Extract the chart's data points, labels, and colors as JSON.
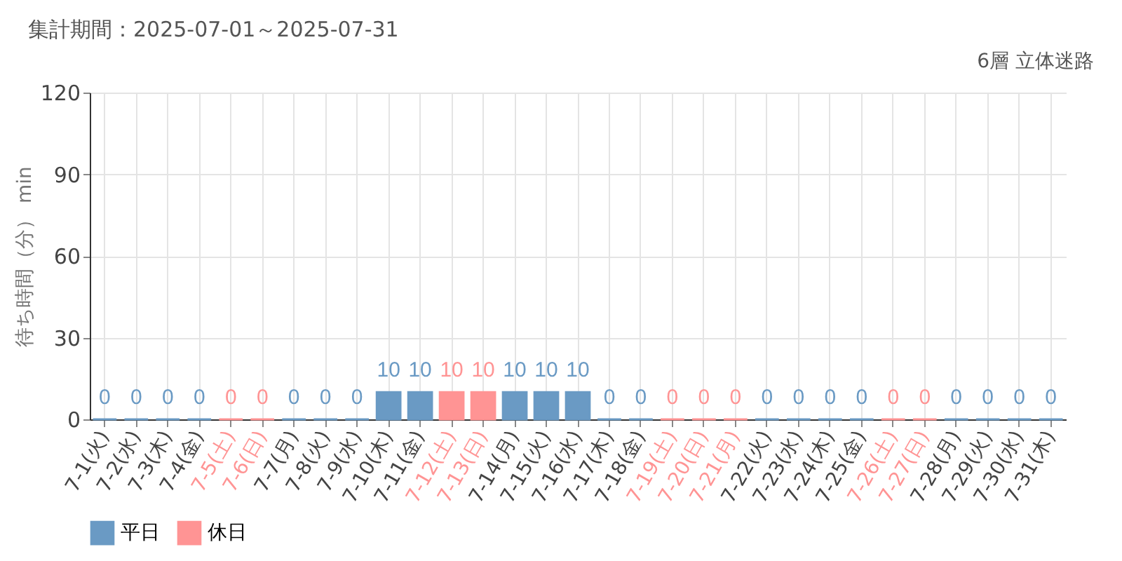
{
  "chart_data": {
    "type": "bar",
    "title": "集計期間：2025-07-01～2025-07-31",
    "subtitle": "6層 立体迷路",
    "ylabel": "待ち時間（分） min",
    "categories": [
      "7-1(火)",
      "7-2(水)",
      "7-3(木)",
      "7-4(金)",
      "7-5(土)",
      "7-6(日)",
      "7-7(月)",
      "7-8(火)",
      "7-9(水)",
      "7-10(木)",
      "7-11(金)",
      "7-12(土)",
      "7-13(日)",
      "7-14(月)",
      "7-15(火)",
      "7-16(水)",
      "7-17(木)",
      "7-18(金)",
      "7-19(土)",
      "7-20(日)",
      "7-21(月)",
      "7-22(火)",
      "7-23(水)",
      "7-24(木)",
      "7-25(金)",
      "7-26(土)",
      "7-27(日)",
      "7-28(月)",
      "7-29(火)",
      "7-30(水)",
      "7-31(木)"
    ],
    "series": [
      {
        "name": "平日",
        "color": "#6a9ac4",
        "values": [
          0,
          0,
          0,
          0,
          null,
          null,
          0,
          0,
          0,
          10,
          10,
          null,
          null,
          10,
          10,
          10,
          0,
          0,
          null,
          null,
          null,
          0,
          0,
          0,
          0,
          null,
          null,
          0,
          0,
          0,
          0
        ]
      },
      {
        "name": "休日",
        "color": "#ff9494",
        "values": [
          null,
          null,
          null,
          null,
          0,
          0,
          null,
          null,
          null,
          null,
          null,
          10,
          10,
          null,
          null,
          null,
          null,
          null,
          0,
          0,
          0,
          null,
          null,
          null,
          null,
          0,
          0,
          null,
          null,
          null,
          null
        ]
      }
    ],
    "ylim": [
      0,
      120
    ],
    "yticks": [
      0,
      30,
      60,
      90,
      120
    ],
    "grid": true,
    "legend": "bottom",
    "data_labels": true
  }
}
